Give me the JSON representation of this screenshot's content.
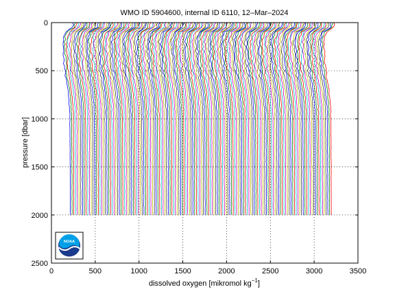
{
  "chart_data": {
    "type": "line",
    "title": "WMO ID 5904600, internal ID 6110, 12–Mar–2024",
    "xlabel_main": "dissolved oxygen [mikromol kg",
    "xlabel_sup": "−1",
    "xlabel_end": "]",
    "ylabel": "pressure [dbar]",
    "xlim": [
      0,
      3500
    ],
    "ylim": [
      2500,
      0
    ],
    "y_reversed": true,
    "grid": "dotted",
    "xticks": [
      0,
      500,
      1000,
      1500,
      2000,
      2500,
      3000,
      3500
    ],
    "yticks": [
      0,
      500,
      1000,
      1500,
      2000,
      2500
    ],
    "xtick_labels": [
      "0",
      "500",
      "1000",
      "1500",
      "2000",
      "2500",
      "3000",
      "3500"
    ],
    "ytick_labels": [
      "0",
      "500",
      "1000",
      "1500",
      "2000",
      "2500"
    ],
    "profiles": {
      "count": 150,
      "first_offset_x": 130,
      "offset_step_x": 20,
      "max_pressure": 2000,
      "template": {
        "pressure": [
          0,
          50,
          100,
          150,
          200,
          300,
          400,
          500,
          600,
          700,
          800,
          900,
          1000,
          1200,
          1500,
          1800,
          2000
        ],
        "oxygen": [
          120,
          110,
          30,
          10,
          0,
          5,
          12,
          22,
          40,
          58,
          70,
          78,
          80,
          82,
          84,
          85,
          86
        ]
      }
    },
    "colors": [
      "#0000ff",
      "#008000",
      "#ff0000",
      "#00bfbf",
      "#bf00bf",
      "#bfbf00",
      "#404040"
    ]
  },
  "logo": {
    "text": "NOAA",
    "colors": {
      "sky": "#00a0e6",
      "dark": "#1a3a8c",
      "wave": "#ffffff"
    }
  }
}
